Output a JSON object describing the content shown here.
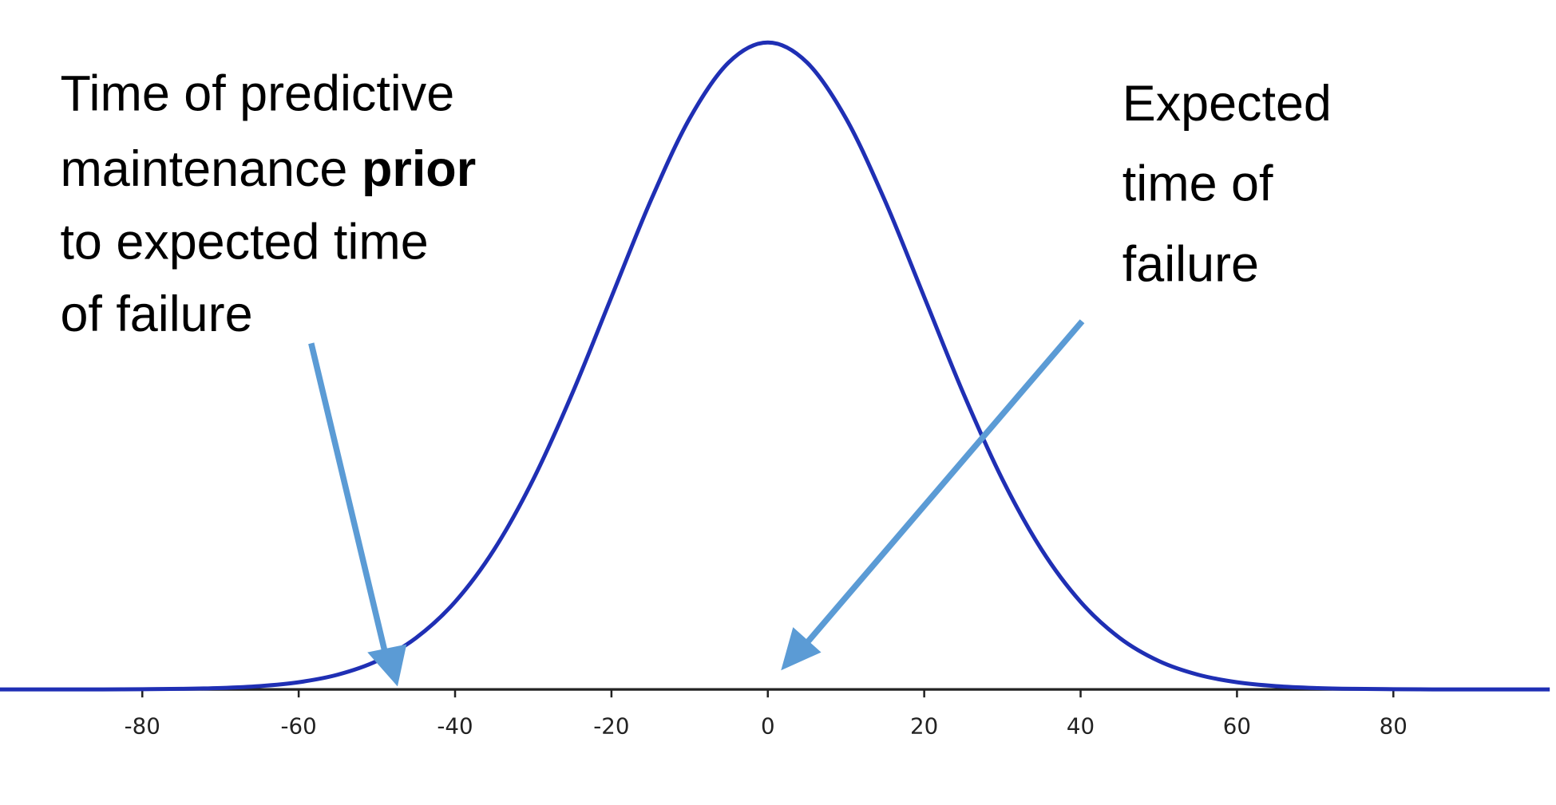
{
  "chart_data": {
    "type": "line",
    "x": [
      -100,
      -95,
      -90,
      -85,
      -80,
      -75,
      -70,
      -65,
      -60,
      -55,
      -50,
      -45,
      -40,
      -35,
      -30,
      -25,
      -20,
      -15,
      -10,
      -5,
      0,
      5,
      10,
      15,
      20,
      25,
      30,
      35,
      40,
      45,
      50,
      55,
      60,
      65,
      70,
      75,
      80,
      85,
      90,
      95,
      100
    ],
    "series": [
      {
        "color": "#1f2fb4",
        "values": [
          0,
          0,
          0,
          0,
          6.7e-06,
          1.76e-05,
          4.36e-05,
          0.000102,
          0.000222,
          0.000455,
          0.000876,
          0.001587,
          0.0027,
          0.004314,
          0.006476,
          0.009132,
          0.012099,
          0.015057,
          0.017603,
          0.019333,
          0.019947,
          0.019333,
          0.017603,
          0.015057,
          0.012099,
          0.009132,
          0.006476,
          0.004314,
          0.0027,
          0.001587,
          0.000876,
          0.000455,
          0.000222,
          0.000102,
          4.36e-05,
          1.76e-05,
          6.7e-06,
          0,
          0,
          0,
          0
        ]
      }
    ],
    "xlim": [
      -98.2,
      100.8
    ],
    "ylim": [
      0,
      0.02125
    ],
    "xticks": [
      -80,
      -60,
      -40,
      -20,
      0,
      20,
      40,
      60,
      80
    ],
    "annotations": [
      {
        "lines": [
          "Time of predictive",
          "maintenance",
          "prior",
          "to expected time",
          "of failure"
        ]
      },
      {
        "lines": [
          "Expected",
          "time of",
          "failure"
        ]
      }
    ]
  }
}
